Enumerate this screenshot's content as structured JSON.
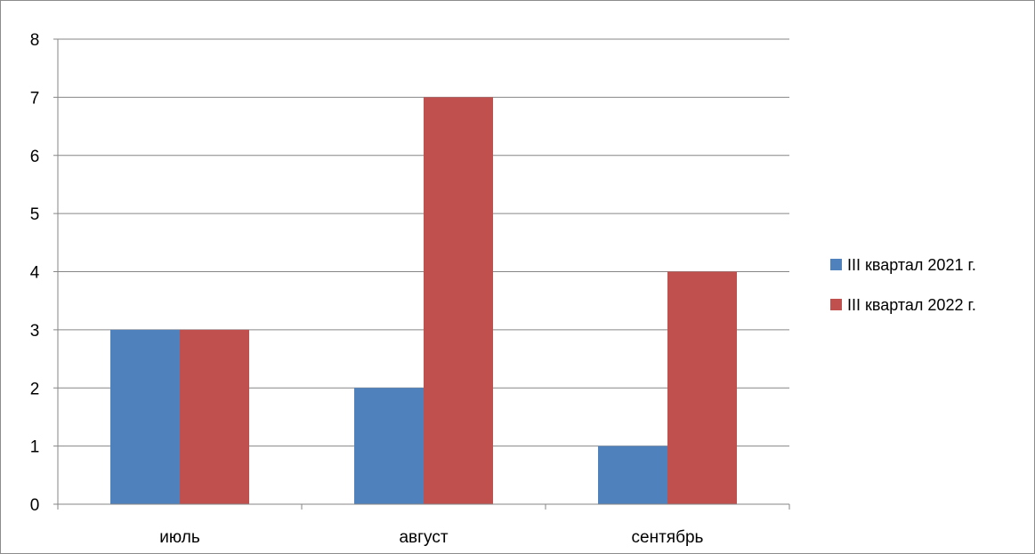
{
  "chart_data": {
    "type": "bar",
    "categories": [
      "июль",
      "август",
      "сентябрь"
    ],
    "series": [
      {
        "name": "III квартал 2021 г.",
        "values": [
          3,
          2,
          1
        ],
        "color": "#4f81bd"
      },
      {
        "name": "III квартал 2022 г.",
        "values": [
          3,
          7,
          4
        ],
        "color": "#c0504d"
      }
    ],
    "ylim": [
      0,
      8
    ],
    "yticks": [
      0,
      1,
      2,
      3,
      4,
      5,
      6,
      7,
      8
    ],
    "grid": true,
    "legend_position": "right",
    "gridline_color": "#868686",
    "axis_color": "#868686"
  }
}
